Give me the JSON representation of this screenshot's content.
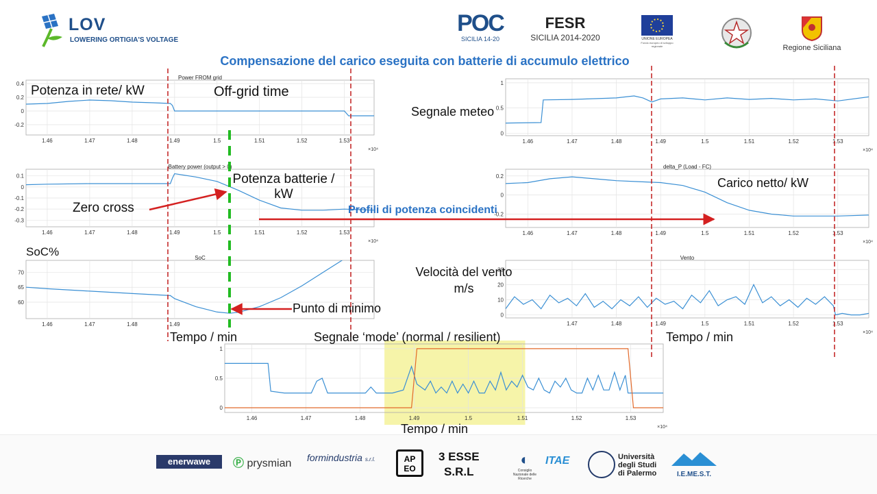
{
  "header": {
    "lov_title": "LOV",
    "lov_subtitle": "LOWERING ORTIGIA'S VOLTAGE",
    "poc_text": "POC",
    "poc_sub": "SICILIA 14-20",
    "fesr_text": "FESR",
    "fesr_sub": "SICILIA 2014-2020",
    "eu_text": "UNIONE EUROPEA",
    "eu_sub": "Fondo europeo di sviluppo regionale",
    "region_text": "Regione Siciliana"
  },
  "title": "Compensazione del carico eseguita con batterie di accumulo elettrico",
  "annotations": {
    "potenza_rete": "Potenza in rete/ kW",
    "off_grid": "Off-grid time",
    "potenza_batterie_1": "Potenza batterie /",
    "potenza_batterie_2": "kW",
    "zero_cross": "Zero cross",
    "profili": "Profili di potenza coincidenti",
    "soc": "SoC%",
    "punto_minimo": "Punto di minimo",
    "tempo_left": "Tempo / min",
    "segnale_meteo": "Segnale meteo",
    "carico_netto": "Carico netto/ kW",
    "velocita_1": "Velocità del vento",
    "velocita_2": "m/s",
    "tempo_right": "Tempo / min",
    "segnale_mode": "Segnale ‘mode’ (normal / resilient)",
    "tempo_bottom": "Tempo / min"
  },
  "colors": {
    "signal": "#3a8fd4",
    "mode": "#e2692a",
    "red_marker": "#c42a2a",
    "green_marker": "#22bb22",
    "highlight": "#f4f29a",
    "title_blue": "#2a72c4"
  },
  "chart_data": [
    {
      "id": "grid",
      "type": "line",
      "title": "Power FROM grid",
      "xlim": [
        1.455,
        1.537
      ],
      "ylim": [
        -0.35,
        0.45
      ],
      "yticks": [
        -0.2,
        0,
        0.2,
        0.4
      ],
      "yticklabels": [
        "-0.2",
        "0",
        "0.2",
        "0.4"
      ],
      "xticks": [
        1.46,
        1.47,
        1.48,
        1.49,
        1.5,
        1.51,
        1.52,
        1.53
      ],
      "xticklabels": [
        "1.46",
        "1.47",
        "1.48",
        "1.49",
        "1.5",
        "1.51",
        "1.52",
        "1.53"
      ],
      "xexponent": "×10⁴",
      "x": [
        1.455,
        1.46,
        1.465,
        1.47,
        1.475,
        1.48,
        1.485,
        1.489,
        1.4895,
        1.49,
        1.5,
        1.51,
        1.52,
        1.53,
        1.531,
        1.537
      ],
      "y": [
        0.1,
        0.11,
        0.14,
        0.16,
        0.15,
        0.13,
        0.12,
        0.11,
        0.08,
        0.0,
        0.0,
        0.0,
        0.0,
        0.0,
        -0.07,
        -0.07
      ]
    },
    {
      "id": "battery",
      "type": "line",
      "title": "Battery power (output > 0)",
      "xlim": [
        1.455,
        1.537
      ],
      "ylim": [
        -0.36,
        0.16
      ],
      "yticks": [
        -0.3,
        -0.2,
        -0.1,
        0,
        0.1
      ],
      "yticklabels": [
        "-0.3",
        "-0.2",
        "-0.1",
        "0",
        "0.1"
      ],
      "xticks": [
        1.46,
        1.47,
        1.48,
        1.49,
        1.5,
        1.51,
        1.52,
        1.53
      ],
      "xticklabels": [
        "1.46",
        "1.47",
        "1.48",
        "1.49",
        "1.5",
        "1.51",
        "1.52",
        "1.53"
      ],
      "xexponent": "×10⁴",
      "x": [
        1.455,
        1.46,
        1.47,
        1.48,
        1.489,
        1.4895,
        1.49,
        1.495,
        1.5,
        1.505,
        1.51,
        1.515,
        1.52,
        1.525,
        1.53,
        1.537
      ],
      "y": [
        0.02,
        0.025,
        0.03,
        0.03,
        0.03,
        0.08,
        0.12,
        0.09,
        0.05,
        -0.03,
        -0.12,
        -0.19,
        -0.21,
        -0.21,
        -0.2,
        -0.21
      ]
    },
    {
      "id": "soc",
      "type": "line",
      "title": "SoC",
      "xlim": [
        1.455,
        1.537
      ],
      "ylim": [
        54.5,
        74
      ],
      "yticks": [
        60,
        65,
        70
      ],
      "yticklabels": [
        "60",
        "65",
        "70"
      ],
      "xticks": [
        1.46,
        1.47,
        1.48,
        1.49
      ],
      "xticklabels": [
        "1.46",
        "1.47",
        "1.48",
        "1.49"
      ],
      "x": [
        1.455,
        1.46,
        1.47,
        1.48,
        1.489,
        1.49,
        1.495,
        1.5,
        1.503,
        1.505,
        1.51,
        1.515,
        1.52,
        1.525,
        1.53
      ],
      "y": [
        65,
        64.5,
        63.7,
        62.9,
        62.2,
        61.2,
        58.5,
        56.7,
        56.3,
        56.6,
        58.5,
        61.5,
        65.5,
        70,
        74.5
      ]
    },
    {
      "id": "meteo",
      "type": "line",
      "title": "",
      "xlim": [
        1.455,
        1.537
      ],
      "ylim": [
        -0.05,
        1.08
      ],
      "yticks": [
        0,
        0.5,
        1
      ],
      "yticklabels": [
        "0",
        "0.5",
        "1"
      ],
      "xticks": [
        1.46,
        1.47,
        1.48,
        1.49,
        1.5,
        1.51,
        1.52,
        1.53
      ],
      "xticklabels": [
        "1.46",
        "1.47",
        "1.48",
        "1.49",
        "1.5",
        "1.51",
        "1.52",
        "1.53"
      ],
      "xexponent": "×10⁴",
      "x": [
        1.455,
        1.463,
        1.4635,
        1.47,
        1.48,
        1.484,
        1.486,
        1.488,
        1.49,
        1.495,
        1.5,
        1.505,
        1.51,
        1.515,
        1.52,
        1.525,
        1.53,
        1.537
      ],
      "y": [
        0.2,
        0.21,
        0.66,
        0.67,
        0.7,
        0.74,
        0.7,
        0.62,
        0.68,
        0.7,
        0.66,
        0.7,
        0.67,
        0.69,
        0.66,
        0.68,
        0.64,
        0.72
      ]
    },
    {
      "id": "delta",
      "type": "line",
      "title": "delta_P (Load - FC)",
      "xlim": [
        1.455,
        1.537
      ],
      "ylim": [
        -0.34,
        0.27
      ],
      "yticks": [
        -0.2,
        0,
        0.2
      ],
      "yticklabels": [
        "-0.2",
        "0",
        "0.2"
      ],
      "xticks": [
        1.46,
        1.47,
        1.48,
        1.49,
        1.5,
        1.51,
        1.52,
        1.53
      ],
      "xticklabels": [
        "1.46",
        "1.47",
        "1.48",
        "1.49",
        "1.5",
        "1.51",
        "1.52",
        "1.53"
      ],
      "xexponent": "×10⁴",
      "x": [
        1.455,
        1.46,
        1.465,
        1.47,
        1.475,
        1.48,
        1.485,
        1.49,
        1.495,
        1.5,
        1.505,
        1.51,
        1.515,
        1.52,
        1.525,
        1.53,
        1.537
      ],
      "y": [
        0.12,
        0.13,
        0.17,
        0.19,
        0.17,
        0.15,
        0.14,
        0.13,
        0.1,
        0.03,
        -0.08,
        -0.16,
        -0.2,
        -0.22,
        -0.22,
        -0.22,
        -0.21
      ]
    },
    {
      "id": "vento",
      "type": "line",
      "title": "Vento",
      "xlim": [
        1.455,
        1.537
      ],
      "ylim": [
        -2,
        36
      ],
      "yticks": [
        0,
        10,
        20,
        30
      ],
      "yticklabels": [
        "0",
        "10",
        "20",
        "30"
      ],
      "xticks": [
        1.47,
        1.48,
        1.49,
        1.5,
        1.51,
        1.52,
        1.53
      ],
      "xticklabels": [
        "1.47",
        "1.48",
        "1.49",
        "1.5",
        "1.51",
        "1.52",
        "1.53"
      ],
      "xexponent": "×10⁴",
      "x": [
        1.455,
        1.457,
        1.459,
        1.461,
        1.463,
        1.465,
        1.467,
        1.469,
        1.471,
        1.473,
        1.475,
        1.477,
        1.479,
        1.481,
        1.483,
        1.485,
        1.487,
        1.489,
        1.491,
        1.493,
        1.495,
        1.497,
        1.499,
        1.501,
        1.503,
        1.505,
        1.507,
        1.509,
        1.511,
        1.513,
        1.515,
        1.517,
        1.519,
        1.521,
        1.523,
        1.525,
        1.527,
        1.529,
        1.5295,
        1.531,
        1.533,
        1.535,
        1.537
      ],
      "y": [
        4,
        12,
        7,
        10,
        4,
        13,
        8,
        11,
        6,
        14,
        5,
        9,
        4,
        10,
        6,
        12,
        5,
        11,
        7,
        9,
        4,
        13,
        8,
        16,
        6,
        10,
        12,
        7,
        20,
        8,
        12,
        6,
        10,
        5,
        11,
        7,
        12,
        6,
        0,
        1,
        0,
        0,
        1
      ]
    },
    {
      "id": "mode",
      "type": "line",
      "title": "",
      "xlim": [
        1.455,
        1.536
      ],
      "ylim": [
        -0.08,
        1.08
      ],
      "yticks": [
        0,
        0.5,
        1
      ],
      "yticklabels": [
        "0",
        "0.5",
        "1"
      ],
      "xticks": [
        1.46,
        1.47,
        1.48,
        1.49,
        1.5,
        1.51,
        1.52,
        1.53
      ],
      "xticklabels": [
        "1.46",
        "1.47",
        "1.48",
        "1.49",
        "1.5",
        "1.51",
        "1.52",
        "1.53"
      ],
      "xexponent": "×10⁴",
      "series": [
        {
          "x": [
            1.455,
            1.463,
            1.4635,
            1.466,
            1.469,
            1.471,
            1.472,
            1.473,
            1.474,
            1.475,
            1.476,
            1.479,
            1.481,
            1.482,
            1.483,
            1.484,
            1.486,
            1.488,
            1.4895,
            1.4905,
            1.492,
            1.493,
            1.494,
            1.495,
            1.496,
            1.497,
            1.498,
            1.499,
            1.5,
            1.501,
            1.502,
            1.503,
            1.504,
            1.505,
            1.506,
            1.507,
            1.508,
            1.509,
            1.51,
            1.511,
            1.512,
            1.513,
            1.514,
            1.515,
            1.516,
            1.517,
            1.518,
            1.519,
            1.52,
            1.521,
            1.522,
            1.523,
            1.524,
            1.525,
            1.526,
            1.527,
            1.528,
            1.529,
            1.5295,
            1.531,
            1.536
          ],
          "y": [
            0.75,
            0.75,
            0.28,
            0.25,
            0.25,
            0.25,
            0.45,
            0.5,
            0.25,
            0.25,
            0.25,
            0.25,
            0.25,
            0.35,
            0.25,
            0.25,
            0.25,
            0.3,
            0.7,
            0.4,
            0.3,
            0.45,
            0.25,
            0.35,
            0.25,
            0.45,
            0.25,
            0.4,
            0.25,
            0.45,
            0.25,
            0.25,
            0.45,
            0.3,
            0.6,
            0.3,
            0.45,
            0.35,
            0.55,
            0.35,
            0.3,
            0.5,
            0.3,
            0.25,
            0.45,
            0.35,
            0.5,
            0.3,
            0.25,
            0.25,
            0.5,
            0.3,
            0.55,
            0.3,
            0.3,
            0.6,
            0.3,
            0.55,
            0.25,
            0.25,
            0.25
          ]
        },
        {
          "x": [
            1.455,
            1.4895,
            1.4905,
            1.5295,
            1.5305,
            1.536
          ],
          "y": [
            0,
            0,
            1,
            1,
            0,
            0
          ]
        }
      ],
      "highlight_x": [
        1.4845,
        1.5105
      ]
    }
  ]
}
